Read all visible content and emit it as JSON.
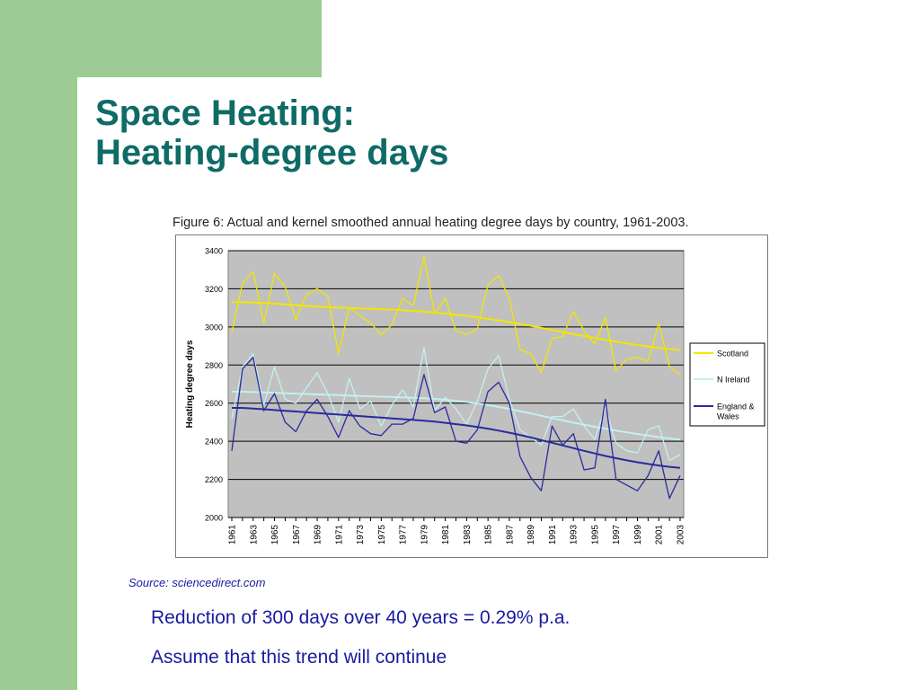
{
  "slide": {
    "title_line1": "Space Heating:",
    "title_line2": "Heating-degree days",
    "figure_caption": "Figure 6: Actual and kernel smoothed annual heating degree days by country, 1961-2003.",
    "source": "Source: sciencedirect.com",
    "bullet1": "Reduction of 300 days over 40  years = 0.29% p.a.",
    "bullet2": "Assume that this trend will continue"
  },
  "colors": {
    "accent_green": "#9ccc94",
    "title_teal": "#0e6b66",
    "body_blue": "#1a1aa0",
    "plot_bg": "#c0c0c0"
  },
  "chart_data": {
    "type": "line",
    "title": "",
    "xlabel": "",
    "ylabel": "Heating degree days",
    "ylim": [
      2000,
      3400
    ],
    "yticks": [
      "2000",
      "2200",
      "2400",
      "2600",
      "2800",
      "3000",
      "3200",
      "3400"
    ],
    "xtick_labels": [
      "1961",
      "1963",
      "1965",
      "1967",
      "1969",
      "1971",
      "1973",
      "1975",
      "1977",
      "1979",
      "1981",
      "1983",
      "1985",
      "1987",
      "1989",
      "1991",
      "1993",
      "1995",
      "1997",
      "1999",
      "2001",
      "2003"
    ],
    "grid": "horizontal",
    "legend_position": "right",
    "x": [
      1961,
      1962,
      1963,
      1964,
      1965,
      1966,
      1967,
      1968,
      1969,
      1970,
      1971,
      1972,
      1973,
      1974,
      1975,
      1976,
      1977,
      1978,
      1979,
      1980,
      1981,
      1982,
      1983,
      1984,
      1985,
      1986,
      1987,
      1988,
      1989,
      1990,
      1991,
      1992,
      1993,
      1994,
      1995,
      1996,
      1997,
      1998,
      1999,
      2000,
      2001,
      2002,
      2003
    ],
    "series": [
      {
        "name": "Scotland",
        "kind": "actual",
        "color": "#f2e600",
        "values": [
          2970,
          3230,
          3290,
          3020,
          3280,
          3210,
          3040,
          3170,
          3200,
          3160,
          2860,
          3100,
          3060,
          3020,
          2960,
          3010,
          3150,
          3110,
          3370,
          3070,
          3150,
          2980,
          2960,
          2990,
          3220,
          3270,
          3150,
          2880,
          2860,
          2760,
          2940,
          2950,
          3080,
          2980,
          2910,
          3050,
          2770,
          2830,
          2840,
          2820,
          3020,
          2790,
          2750
        ]
      },
      {
        "name": "Scotland",
        "kind": "smoothed",
        "color": "#f2e600",
        "values": [
          3130,
          3130,
          3128,
          3125,
          3122,
          3118,
          3114,
          3110,
          3107,
          3104,
          3101,
          3099,
          3097,
          3095,
          3093,
          3091,
          3088,
          3084,
          3080,
          3075,
          3070,
          3064,
          3058,
          3050,
          3042,
          3034,
          3025,
          3016,
          3006,
          2995,
          2984,
          2973,
          2962,
          2952,
          2942,
          2932,
          2923,
          2914,
          2905,
          2897,
          2890,
          2884,
          2878
        ]
      },
      {
        "name": "N Ireland",
        "kind": "actual",
        "color": "#c4f0f0",
        "values": [
          2520,
          2790,
          2860,
          2590,
          2790,
          2620,
          2600,
          2680,
          2760,
          2650,
          2500,
          2730,
          2570,
          2610,
          2480,
          2590,
          2670,
          2580,
          2890,
          2560,
          2630,
          2570,
          2490,
          2610,
          2780,
          2850,
          2620,
          2460,
          2420,
          2380,
          2530,
          2530,
          2570,
          2480,
          2410,
          2580,
          2390,
          2350,
          2340,
          2460,
          2480,
          2300,
          2330
        ]
      },
      {
        "name": "N Ireland",
        "kind": "smoothed",
        "color": "#c4f0f0",
        "values": [
          2660,
          2660,
          2658,
          2656,
          2654,
          2652,
          2650,
          2648,
          2646,
          2644,
          2642,
          2640,
          2638,
          2636,
          2634,
          2632,
          2630,
          2628,
          2626,
          2622,
          2618,
          2612,
          2606,
          2598,
          2590,
          2580,
          2570,
          2558,
          2546,
          2534,
          2522,
          2510,
          2498,
          2487,
          2476,
          2466,
          2456,
          2447,
          2438,
          2430,
          2422,
          2415,
          2408
        ]
      },
      {
        "name": "England & Wales",
        "kind": "actual",
        "color": "#2a2a9e",
        "values": [
          2350,
          2780,
          2840,
          2560,
          2650,
          2500,
          2450,
          2560,
          2620,
          2530,
          2420,
          2560,
          2480,
          2440,
          2430,
          2490,
          2490,
          2520,
          2750,
          2550,
          2580,
          2400,
          2390,
          2460,
          2660,
          2710,
          2600,
          2320,
          2210,
          2140,
          2480,
          2380,
          2440,
          2250,
          2260,
          2620,
          2200,
          2170,
          2140,
          2220,
          2350,
          2100,
          2220
        ]
      },
      {
        "name": "England & Wales",
        "kind": "smoothed",
        "color": "#2a2a9e",
        "values": [
          2575,
          2575,
          2572,
          2568,
          2564,
          2560,
          2556,
          2552,
          2548,
          2544,
          2540,
          2536,
          2532,
          2528,
          2524,
          2520,
          2516,
          2512,
          2508,
          2503,
          2497,
          2490,
          2483,
          2475,
          2466,
          2456,
          2445,
          2433,
          2420,
          2406,
          2392,
          2378,
          2364,
          2350,
          2336,
          2323,
          2311,
          2300,
          2290,
          2281,
          2273,
          2266,
          2260
        ]
      }
    ],
    "legend": [
      {
        "label": "Scotland",
        "color": "#f2e600"
      },
      {
        "label": "N Ireland",
        "color": "#c4f0f0"
      },
      {
        "label": "England & Wales",
        "color": "#2a2a9e"
      }
    ]
  }
}
